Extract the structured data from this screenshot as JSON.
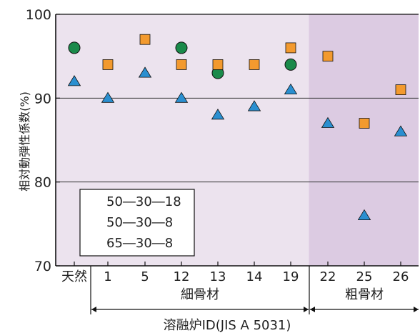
{
  "chart_data": {
    "type": "scatter",
    "ylabel": "相対動弾性係数(%)",
    "xlabel": "溶融炉ID(JIS A 5031)",
    "ylim": [
      70,
      100
    ],
    "y_ticks": [
      70,
      80,
      90,
      100
    ],
    "categories": [
      "天然",
      "1",
      "5",
      "12",
      "13",
      "14",
      "19",
      "22",
      "25",
      "26"
    ],
    "groups": [
      {
        "label": "細骨材",
        "from": "1",
        "to": "19"
      },
      {
        "label": "粗骨材",
        "from": "22",
        "to": "26"
      }
    ],
    "shaded_region_from": "22",
    "grid": "horizontal",
    "legend_position": "bottom-left",
    "series": [
      {
        "name": "50―30―18",
        "marker": "circle",
        "color": "#1a8a4a",
        "values": [
          96,
          null,
          null,
          96,
          93,
          null,
          94,
          null,
          null,
          null
        ]
      },
      {
        "name": "50―30―8",
        "marker": "square",
        "color": "#f39a2e",
        "values": [
          null,
          94,
          97,
          94,
          94,
          94,
          96,
          95,
          87,
          91
        ]
      },
      {
        "name": "65―30―8",
        "marker": "triangle",
        "color": "#2a8fd0",
        "values": [
          92,
          90,
          93,
          90,
          88,
          89,
          91,
          87,
          76,
          86
        ]
      }
    ],
    "colors": {
      "plot_bg": "#ece3ee",
      "shaded_bg": "#dccbe2",
      "grid": "#333333",
      "axis": "#111111"
    }
  }
}
